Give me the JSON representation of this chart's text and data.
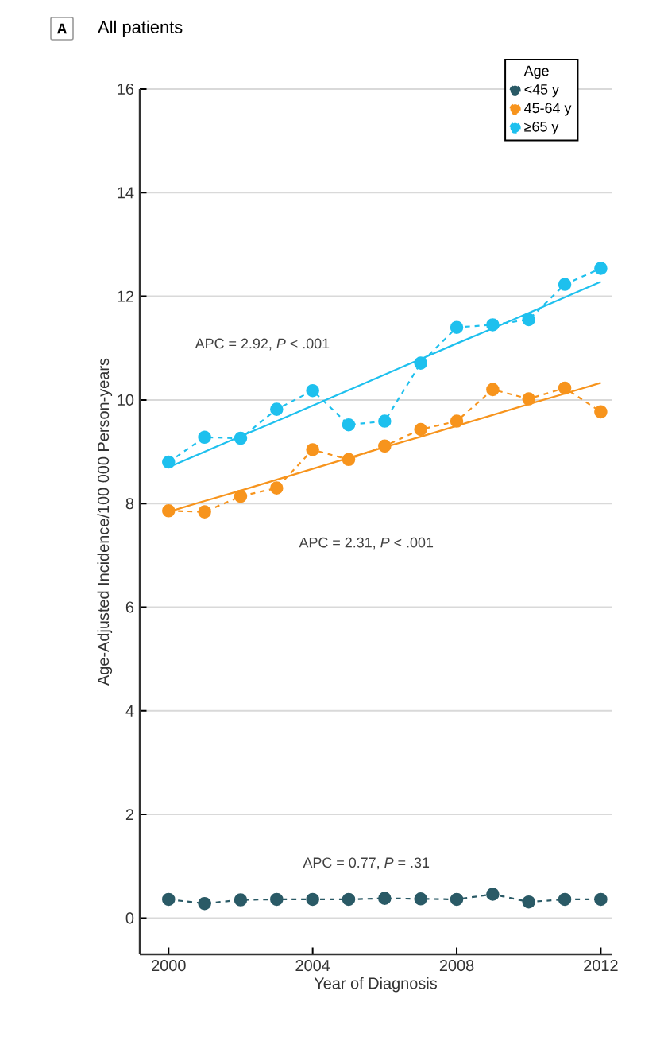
{
  "chart_data": {
    "type": "line",
    "title": "All patients",
    "xlabel": "Year of Diagnosis",
    "ylabel": "Age-Adjusted Incidence/100 000 Person-years",
    "legend_title": "Age",
    "legend": "top right",
    "grid": "y",
    "marker": "circle",
    "line_style": "dashed",
    "x": [
      2000,
      2001,
      2002,
      2003,
      2004,
      2005,
      2006,
      2007,
      2008,
      2009,
      2010,
      2011,
      2012
    ],
    "xlim": [
      1999.2,
      2012.3
    ],
    "xticks": [
      2000,
      2004,
      2008,
      2012
    ],
    "ylim": [
      -0.7,
      16
    ],
    "yticks": [
      0,
      2,
      4,
      6,
      8,
      10,
      12,
      14,
      16
    ],
    "series": [
      {
        "name": "<45 y",
        "color": "#2a5a66",
        "values": [
          0.36,
          0.28,
          0.35,
          0.36,
          0.36,
          0.36,
          0.38,
          0.37,
          0.36,
          0.46,
          0.31,
          0.36,
          0.36
        ]
      },
      {
        "name": "45-64 y",
        "color": "#f7941d",
        "values": [
          7.86,
          7.84,
          8.14,
          8.3,
          9.04,
          8.85,
          9.11,
          9.43,
          9.59,
          10.2,
          10.02,
          10.23,
          9.77
        ]
      },
      {
        "name": "≥65 y",
        "color": "#1ec0ee",
        "values": [
          8.8,
          9.28,
          9.26,
          9.82,
          10.18,
          9.52,
          9.59,
          10.71,
          11.4,
          11.45,
          11.55,
          12.23,
          12.54
        ]
      },
      {
        "type": "line",
        "color": "#f7941d",
        "values": [
          7.84,
          8.05,
          8.25,
          8.46,
          8.67,
          8.88,
          9.09,
          9.29,
          9.5,
          9.71,
          9.92,
          10.12,
          10.33
        ],
        "marker": "none",
        "line_style": "solid"
      },
      {
        "type": "line",
        "color": "#1ec0ee",
        "values": [
          8.7,
          9.0,
          9.3,
          9.59,
          9.89,
          10.19,
          10.49,
          10.79,
          11.09,
          11.38,
          11.68,
          11.98,
          12.28
        ],
        "marker": "none",
        "line_style": "solid"
      }
    ],
    "annotations": [
      "A",
      "APC = 2.92, *P* < .001",
      "APC = 2.31, *P* < .001",
      "APC = 0.77, *P* = .31"
    ]
  }
}
